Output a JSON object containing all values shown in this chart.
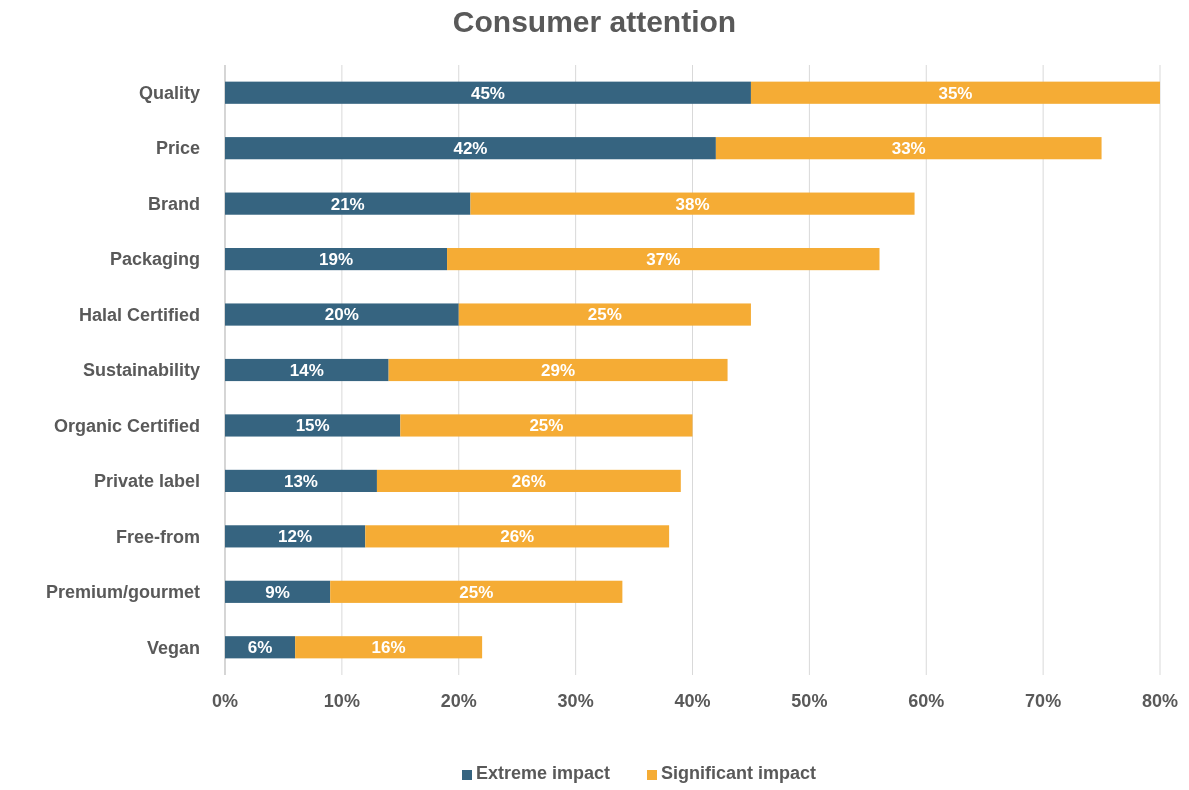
{
  "chart_data": {
    "type": "bar",
    "orientation": "horizontal",
    "stacked": true,
    "title": "Consumer attention",
    "categories": [
      "Quality",
      "Price",
      "Brand",
      "Packaging",
      "Halal Certified",
      "Sustainability",
      "Organic Certified",
      "Private label",
      "Free-from",
      "Premium/gourmet",
      "Vegan"
    ],
    "series": [
      {
        "name": "Extreme impact",
        "color": "#366480",
        "values": [
          45,
          42,
          21,
          19,
          20,
          14,
          15,
          13,
          12,
          9,
          6
        ],
        "value_labels": [
          "45%",
          "42%",
          "21%",
          "19%",
          "20%",
          "14%",
          "15%",
          "13%",
          "12%",
          "9%",
          "6%"
        ]
      },
      {
        "name": "Significant impact",
        "color": "#f5ac35",
        "values": [
          35,
          33,
          38,
          37,
          25,
          29,
          25,
          26,
          26,
          25,
          16
        ],
        "value_labels": [
          "35%",
          "33%",
          "38%",
          "37%",
          "25%",
          "29%",
          "25%",
          "26%",
          "26%",
          "25%",
          "16%"
        ]
      }
    ],
    "xlim": [
      0,
      80
    ],
    "xticks": [
      {
        "value": 0,
        "label": "0%"
      },
      {
        "value": 10,
        "label": "10%"
      },
      {
        "value": 20,
        "label": "20%"
      },
      {
        "value": 30,
        "label": "30%"
      },
      {
        "value": 40,
        "label": "40%"
      },
      {
        "value": 50,
        "label": "50%"
      },
      {
        "value": 60,
        "label": "60%"
      },
      {
        "value": 70,
        "label": "70%"
      },
      {
        "value": 80,
        "label": "80%"
      }
    ],
    "grid": "x",
    "legend": "bottom"
  }
}
